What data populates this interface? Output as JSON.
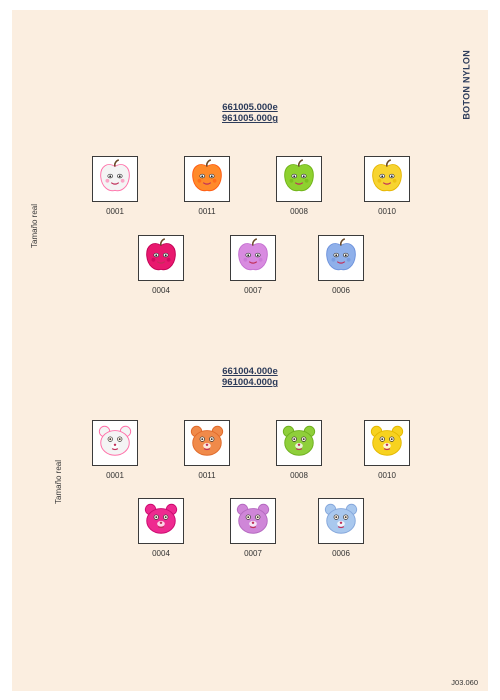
{
  "side_title": "BOTON NYLON",
  "page_number": "J03.060",
  "sections": [
    {
      "codes": [
        "661005.000e",
        "961005.000g"
      ],
      "size_label": "Tamaño real",
      "shape": "apple-face",
      "row1": [
        {
          "code": "0001",
          "color": "#f4f4f4",
          "accent": "#ff6fa8"
        },
        {
          "code": "0011",
          "color": "#ff8a2a",
          "accent": "#ff5a10"
        },
        {
          "code": "0008",
          "color": "#8ed12f",
          "accent": "#6fb318"
        },
        {
          "code": "0010",
          "color": "#f7d431",
          "accent": "#e6b500"
        }
      ],
      "row2": [
        {
          "code": "0004",
          "color": "#e8186e",
          "accent": "#c20055"
        },
        {
          "code": "0007",
          "color": "#d88be0",
          "accent": "#c46fd0"
        },
        {
          "code": "0006",
          "color": "#8fb0ea",
          "accent": "#6d92dc"
        }
      ]
    },
    {
      "codes": [
        "661004.000e",
        "961004.000g"
      ],
      "size_label": "Tamaño real",
      "shape": "bear-face",
      "row1": [
        {
          "code": "0001",
          "color": "#f4f4f4",
          "accent": "#ff6fa8"
        },
        {
          "code": "0011",
          "color": "#f08a4a",
          "accent": "#e06a2a"
        },
        {
          "code": "0008",
          "color": "#8fcf3a",
          "accent": "#6fb020"
        },
        {
          "code": "0010",
          "color": "#f7d21f",
          "accent": "#e4b800"
        }
      ],
      "row2": [
        {
          "code": "0004",
          "color": "#ee2a90",
          "accent": "#cc0a70"
        },
        {
          "code": "0007",
          "color": "#cf86d8",
          "accent": "#b56ac0"
        },
        {
          "code": "0006",
          "color": "#a9c8ee",
          "accent": "#86a8dc"
        }
      ]
    }
  ]
}
